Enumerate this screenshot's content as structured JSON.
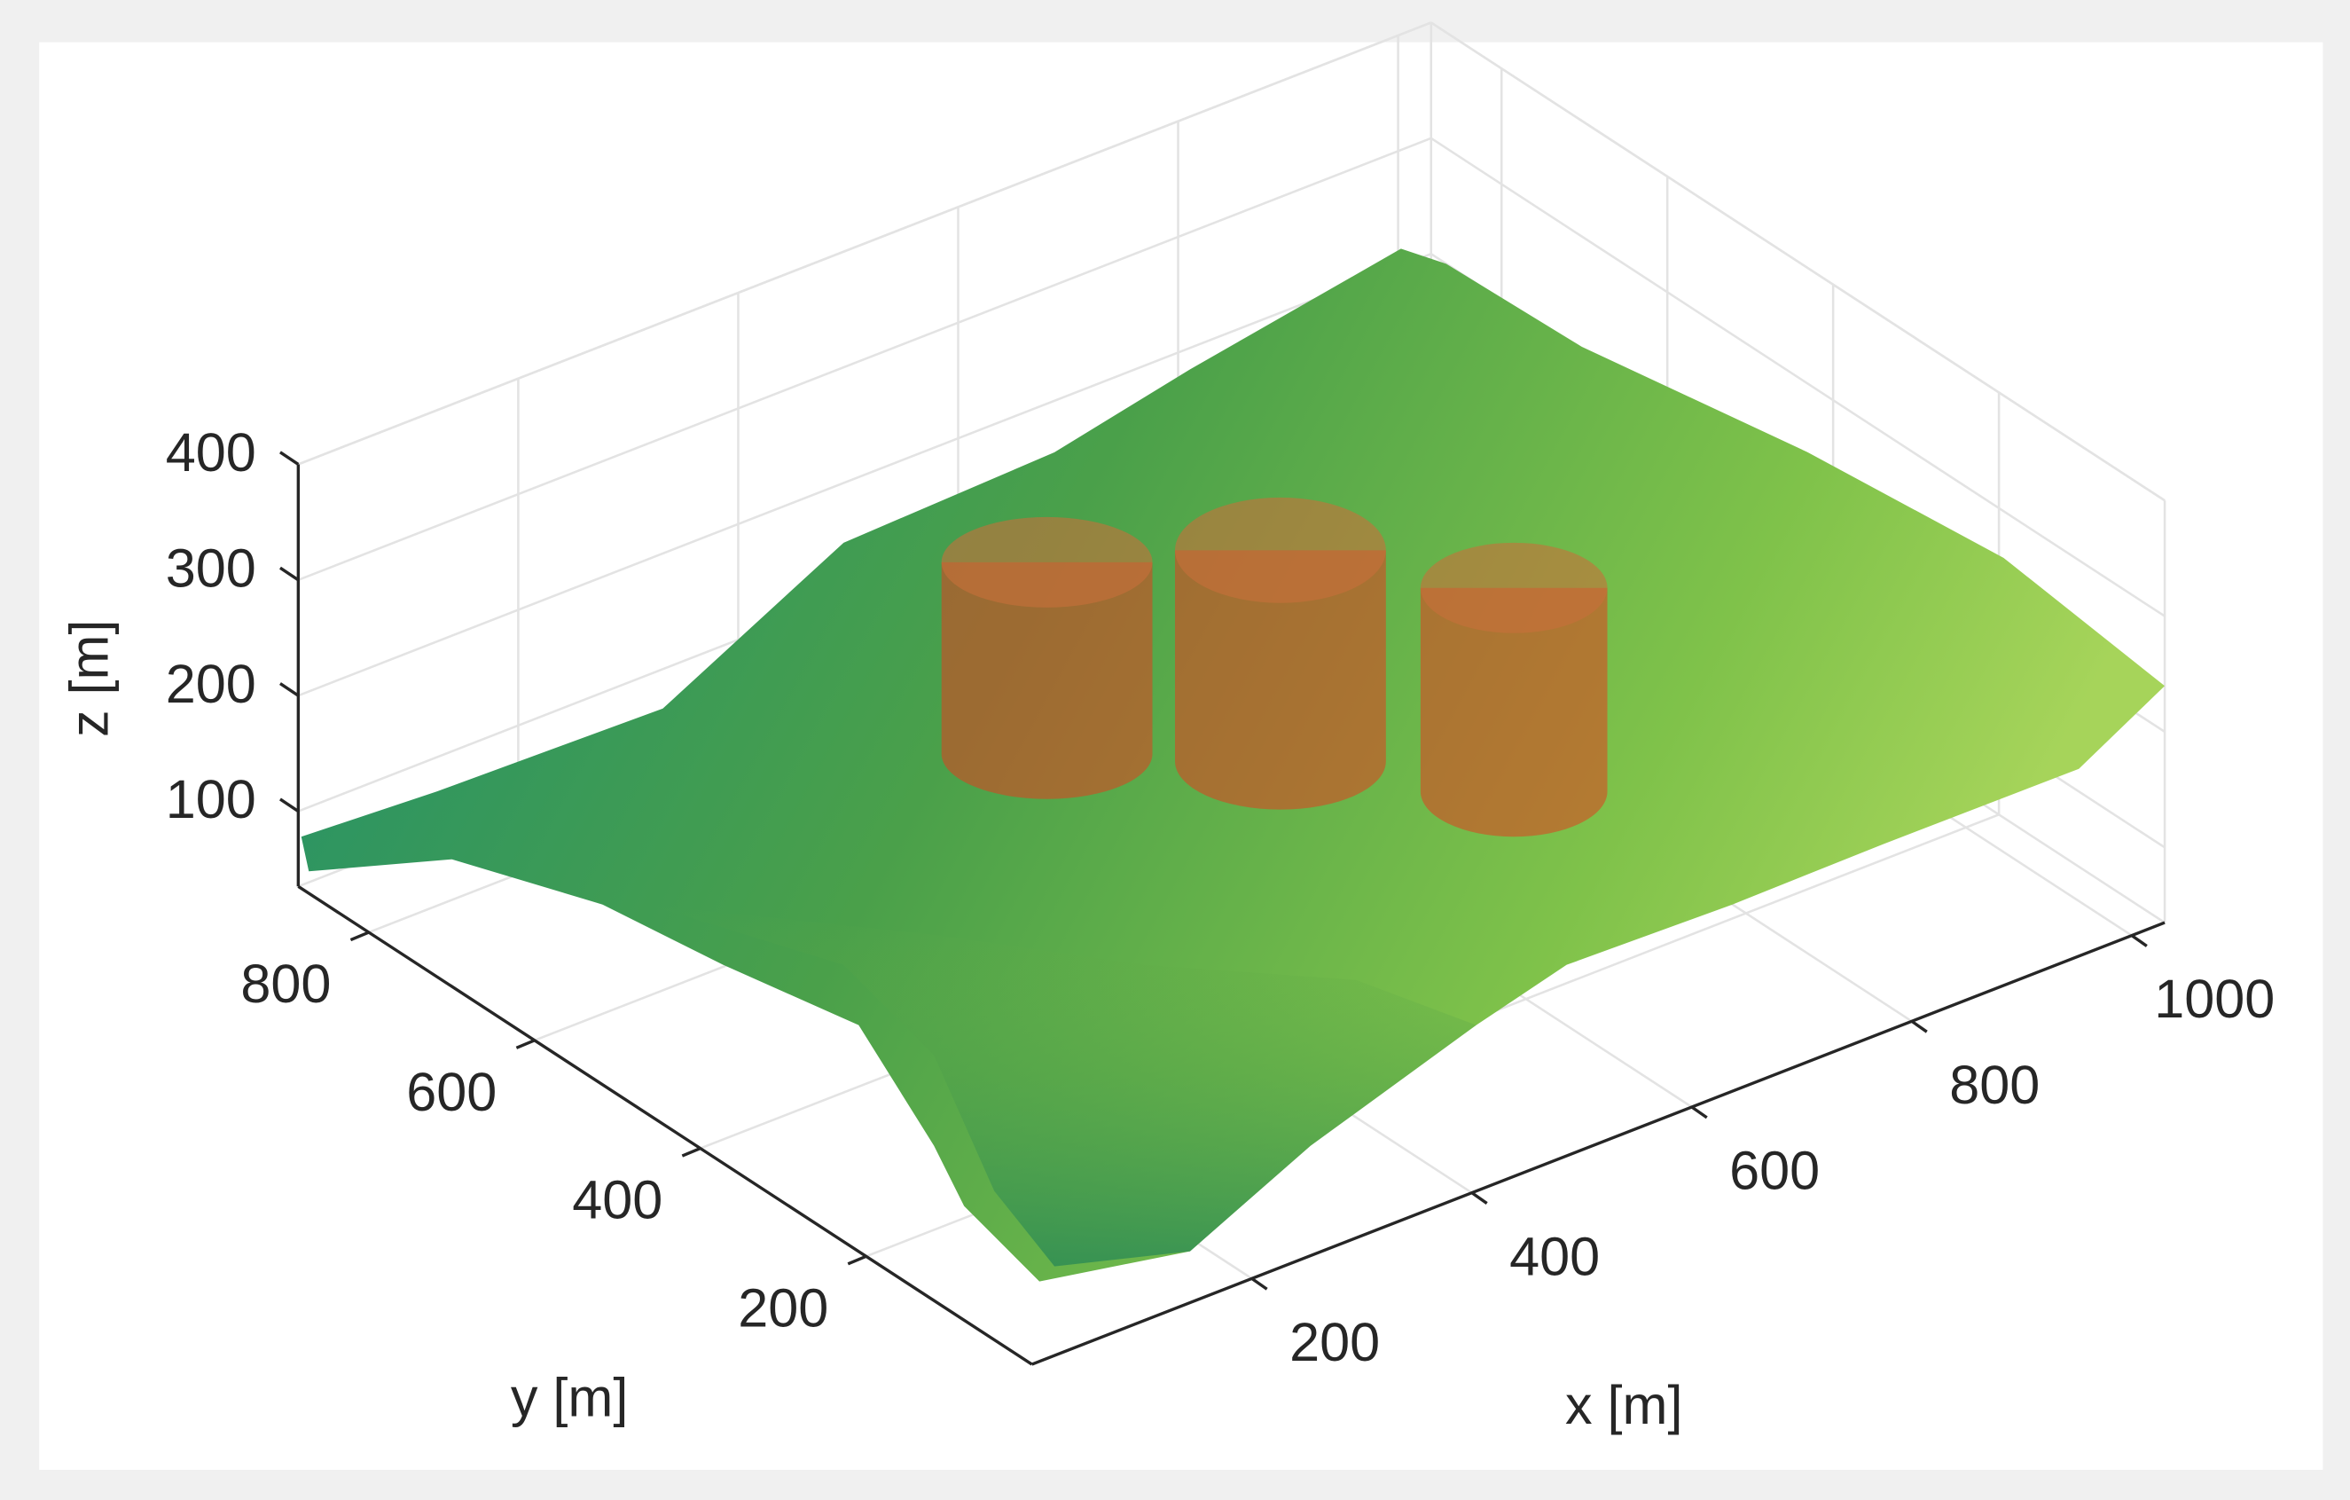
{
  "chart_data": {
    "type": "surface3d",
    "xlabel": "x [m]",
    "ylabel": "y [m]",
    "zlabel": "z [m]",
    "xlim": [
      0,
      1030
    ],
    "ylim": [
      0,
      885
    ],
    "zlim": [
      35,
      400
    ],
    "xticks": [
      200,
      400,
      600,
      800,
      1000
    ],
    "yticks": [
      200,
      400,
      600,
      800
    ],
    "zticks": [
      100,
      200,
      300,
      400
    ],
    "grid": true
  }
}
